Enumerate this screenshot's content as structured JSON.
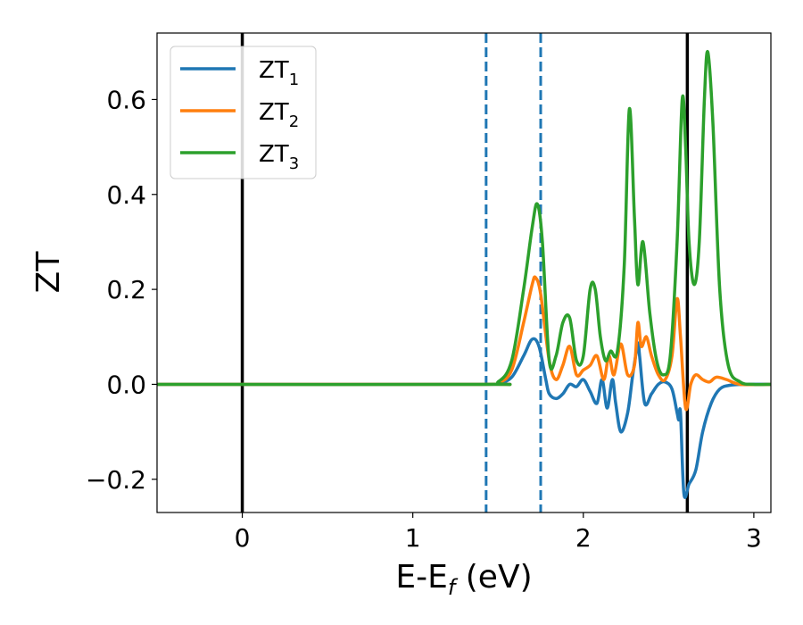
{
  "chart_data": {
    "type": "line",
    "xlabel_main": "E-E",
    "xlabel_sub": "f",
    "xlabel_unit": " (eV)",
    "ylabel": "ZT",
    "xlim": [
      -0.5,
      3.1
    ],
    "ylim": [
      -0.27,
      0.74
    ],
    "xticks": [
      0,
      1,
      2,
      3
    ],
    "xtick_labels": [
      "0",
      "1",
      "2",
      "3"
    ],
    "yticks": [
      -0.2,
      0.0,
      0.2,
      0.4,
      0.6
    ],
    "ytick_labels": [
      "−0.2",
      "0.0",
      "0.2",
      "0.4",
      "0.6"
    ],
    "grid": false,
    "legend_position": "top-left",
    "vertical_lines": [
      {
        "x": 0.0,
        "style": "solid",
        "color": "#000000"
      },
      {
        "x": 2.61,
        "style": "solid",
        "color": "#000000"
      },
      {
        "x": 1.43,
        "style": "dashed",
        "color": "#1f77b4"
      },
      {
        "x": 1.75,
        "style": "dashed",
        "color": "#1f77b4"
      }
    ],
    "series": [
      {
        "name": "ZT",
        "subscript": "1",
        "color": "#1f77b4",
        "x": [
          -0.5,
          1.4,
          1.5,
          1.58,
          1.65,
          1.7,
          1.74,
          1.78,
          1.8,
          1.84,
          1.88,
          1.92,
          1.96,
          2.0,
          2.04,
          2.08,
          2.11,
          2.14,
          2.17,
          2.19,
          2.22,
          2.26,
          2.29,
          2.32,
          2.33,
          2.36,
          2.4,
          2.44,
          2.48,
          2.52,
          2.55,
          2.56,
          2.57,
          2.59,
          2.62,
          2.66,
          2.7,
          2.75,
          2.8,
          2.86,
          2.95,
          3.1
        ],
        "y": [
          0.0,
          0.0,
          0.002,
          0.015,
          0.06,
          0.095,
          0.08,
          0.01,
          -0.02,
          -0.03,
          -0.02,
          0.0,
          -0.005,
          0.01,
          -0.015,
          -0.04,
          0.01,
          -0.05,
          0.01,
          -0.04,
          -0.1,
          -0.06,
          0.02,
          0.085,
          0.06,
          -0.04,
          -0.02,
          0.0,
          0.005,
          -0.01,
          -0.06,
          -0.075,
          -0.06,
          -0.23,
          -0.21,
          -0.18,
          -0.1,
          -0.04,
          -0.01,
          -0.002,
          0.0,
          0.0
        ]
      },
      {
        "name": "ZT",
        "subscript": "2",
        "color": "#ff7f0e",
        "x": [
          -0.5,
          1.4,
          1.5,
          1.58,
          1.65,
          1.7,
          1.72,
          1.75,
          1.8,
          1.84,
          1.88,
          1.92,
          1.96,
          2.0,
          2.04,
          2.08,
          2.12,
          2.15,
          2.18,
          2.22,
          2.26,
          2.3,
          2.32,
          2.34,
          2.37,
          2.4,
          2.44,
          2.48,
          2.52,
          2.55,
          2.57,
          2.6,
          2.63,
          2.66,
          2.7,
          2.74,
          2.78,
          2.84,
          2.92,
          3.1
        ],
        "y": [
          0.0,
          0.0,
          0.003,
          0.03,
          0.13,
          0.21,
          0.225,
          0.19,
          0.05,
          0.01,
          0.04,
          0.08,
          0.02,
          0.03,
          0.04,
          0.06,
          0.01,
          0.06,
          0.02,
          0.085,
          0.02,
          0.04,
          0.13,
          0.08,
          0.1,
          0.06,
          0.02,
          0.01,
          0.06,
          0.18,
          0.1,
          -0.05,
          0.0,
          0.02,
          0.01,
          0.005,
          0.015,
          0.01,
          0.0,
          0.0
        ]
      },
      {
        "name": "ZT",
        "subscript": "3",
        "color": "#2ca02c",
        "x": [
          -0.5,
          1.4,
          1.5,
          1.58,
          1.65,
          1.7,
          1.73,
          1.76,
          1.8,
          1.84,
          1.88,
          1.92,
          1.96,
          2.0,
          2.04,
          2.07,
          2.1,
          2.13,
          2.16,
          2.2,
          2.24,
          2.27,
          2.3,
          2.32,
          2.35,
          2.39,
          2.43,
          2.47,
          2.51,
          2.55,
          2.58,
          2.6,
          2.62,
          2.65,
          2.68,
          2.71,
          2.73,
          2.76,
          2.8,
          2.85,
          2.92,
          3.0,
          3.1
        ],
        "y": [
          0.0,
          0.0,
          0.005,
          0.05,
          0.2,
          0.33,
          0.38,
          0.3,
          0.05,
          0.06,
          0.13,
          0.14,
          0.05,
          0.06,
          0.2,
          0.2,
          0.1,
          0.05,
          0.07,
          0.07,
          0.25,
          0.58,
          0.35,
          0.21,
          0.3,
          0.15,
          0.05,
          0.02,
          0.06,
          0.3,
          0.6,
          0.5,
          0.3,
          0.21,
          0.3,
          0.6,
          0.7,
          0.55,
          0.2,
          0.04,
          0.005,
          0.0,
          0.0
        ]
      }
    ]
  }
}
